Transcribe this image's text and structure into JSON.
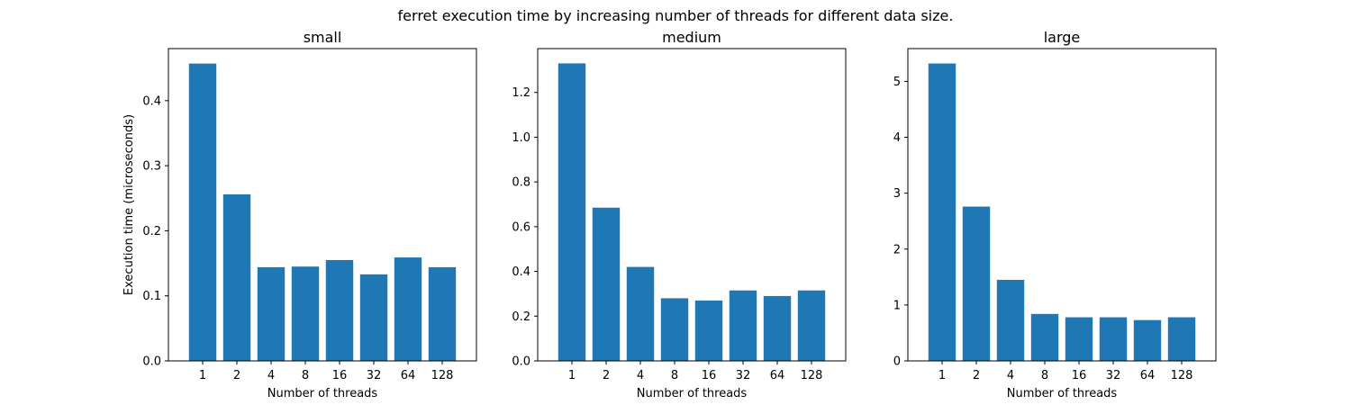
{
  "suptitle": "ferret execution time by increasing number of threads for different data size.",
  "chart_data": [
    {
      "type": "bar",
      "title": "small",
      "xlabel": "Number of threads",
      "ylabel": "Execution time (microseconds)",
      "categories": [
        "1",
        "2",
        "4",
        "8",
        "16",
        "32",
        "64",
        "128"
      ],
      "values": [
        0.457,
        0.256,
        0.144,
        0.145,
        0.155,
        0.133,
        0.159,
        0.144
      ],
      "ylim": [
        0,
        0.48
      ],
      "yticks": [
        0.0,
        0.1,
        0.2,
        0.3,
        0.4
      ],
      "ytick_labels": [
        "0.0",
        "0.1",
        "0.2",
        "0.3",
        "0.4"
      ],
      "color": "#1f77b4"
    },
    {
      "type": "bar",
      "title": "medium",
      "xlabel": "Number of threads",
      "ylabel": "",
      "categories": [
        "1",
        "2",
        "4",
        "8",
        "16",
        "32",
        "64",
        "128"
      ],
      "values": [
        1.33,
        0.685,
        0.42,
        0.28,
        0.27,
        0.315,
        0.29,
        0.315
      ],
      "ylim": [
        0,
        1.396
      ],
      "yticks": [
        0.0,
        0.2,
        0.4,
        0.6,
        0.8,
        1.0,
        1.2
      ],
      "ytick_labels": [
        "0.0",
        "0.2",
        "0.4",
        "0.6",
        "0.8",
        "1.0",
        "1.2"
      ],
      "color": "#1f77b4"
    },
    {
      "type": "bar",
      "title": "large",
      "xlabel": "Number of threads",
      "ylabel": "",
      "categories": [
        "1",
        "2",
        "4",
        "8",
        "16",
        "32",
        "64",
        "128"
      ],
      "values": [
        5.32,
        2.76,
        1.45,
        0.84,
        0.78,
        0.78,
        0.73,
        0.78
      ],
      "ylim": [
        0,
        5.586
      ],
      "yticks": [
        0,
        1,
        2,
        3,
        4,
        5
      ],
      "ytick_labels": [
        "0",
        "1",
        "2",
        "3",
        "4",
        "5"
      ],
      "color": "#1f77b4"
    }
  ]
}
